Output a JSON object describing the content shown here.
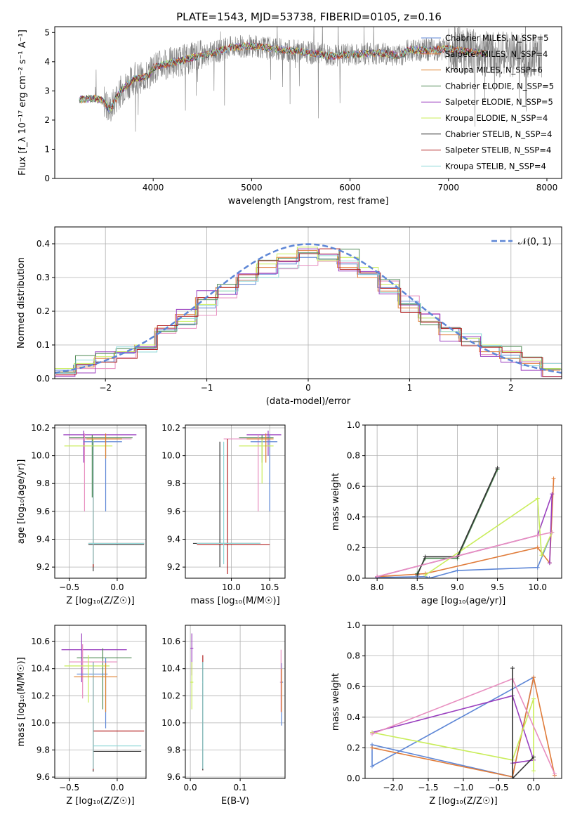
{
  "figure": {
    "title": "PLATE=1543, MJD=53738, FIBERID=0105, z=0.16"
  },
  "colors": {
    "chabrier_miles": "#5d86d6",
    "salpeter_miles": "#e07b39",
    "kroupa_miles": "#df7f2a",
    "chabrier_elodie": "#4f8a55",
    "salpeter_elodie": "#9a3fbf",
    "kroupa_elodie": "#c9ed5a",
    "chabrier_stelib": "#333333",
    "salpeter_stelib": "#b22222",
    "kroupa_stelib": "#8fd8d8",
    "pink": "#e88fc0",
    "data": "#808080",
    "grid": "#b0b0b0"
  },
  "chart_data": [
    {
      "id": "spectrum",
      "type": "line",
      "title": "PLATE=1543, MJD=53738, FIBERID=0105, z=0.16",
      "xlabel": "wavelength [Angstrom, rest frame]",
      "ylabel": "Flux [f_λ 10⁻¹⁷ erg cm⁻² s⁻¹ A⁻¹]",
      "xlim": [
        3000,
        8150
      ],
      "ylim": [
        0,
        5.2
      ],
      "xticks": [
        "4000",
        "5000",
        "6000",
        "7000",
        "8000"
      ],
      "yticks": [
        "0",
        "1",
        "2",
        "3",
        "4",
        "5"
      ],
      "grid": false,
      "legend_position": "upper-right",
      "legend": [
        "Chabrier MILES, N_SSP=5",
        "Salpeter MILES, N_SSP=4",
        "Kroupa MILES, N_SSP=6",
        "Chabrier ELODIE, N_SSP=5",
        "Salpeter ELODIE, N_SSP=5",
        "Kroupa ELODIE, N_SSP=4",
        "Chabrier STELIB, N_SSP=4",
        "Salpeter STELIB, N_SSP=4",
        "Kroupa STELIB, N_SSP=4"
      ],
      "model_continuum": {
        "x": [
          3250,
          3400,
          3500,
          3560,
          3650,
          3700,
          3800,
          3950,
          4000,
          4100,
          4300,
          4400,
          4600,
          4800,
          5000,
          5200,
          5500,
          5800,
          6000,
          6300,
          6500,
          6600,
          6800,
          7000,
          7200,
          7400
        ],
        "y": [
          2.7,
          2.75,
          2.65,
          2.35,
          2.9,
          3.1,
          3.4,
          3.5,
          3.8,
          3.9,
          4.05,
          4.15,
          4.3,
          4.5,
          4.55,
          4.45,
          4.35,
          4.2,
          4.25,
          4.3,
          4.2,
          4.4,
          4.4,
          4.45,
          4.35,
          4.25
        ]
      }
    },
    {
      "id": "residuals",
      "type": "histogram",
      "xlabel": "(data-model)/error",
      "ylabel": "Normed distribution",
      "xlim": [
        -2.5,
        2.5
      ],
      "ylim": [
        0,
        0.45
      ],
      "xticks": [
        "−2",
        "−1",
        "0",
        "1",
        "2"
      ],
      "yticks": [
        "0.0",
        "0.1",
        "0.2",
        "0.3",
        "0.4"
      ],
      "grid": true,
      "legend": [
        "𝒩(0, 1)"
      ],
      "legend_position": "upper-right",
      "bins": [
        -2.5,
        -2.3,
        -2.1,
        -1.9,
        -1.7,
        -1.5,
        -1.3,
        -1.1,
        -0.9,
        -0.7,
        -0.5,
        -0.3,
        -0.1,
        0.1,
        0.3,
        0.5,
        0.7,
        0.9,
        1.1,
        1.3,
        1.5,
        1.7,
        1.9,
        2.1,
        2.3,
        2.5
      ],
      "series": [
        {
          "values": [
            0.025,
            0.04,
            0.05,
            0.075,
            0.09,
            0.14,
            0.16,
            0.21,
            0.25,
            0.28,
            0.31,
            0.34,
            0.36,
            0.355,
            0.34,
            0.31,
            0.27,
            0.23,
            0.18,
            0.15,
            0.12,
            0.095,
            0.07,
            0.05,
            0.03
          ]
        },
        {
          "values": [
            0.02,
            0.035,
            0.06,
            0.08,
            0.1,
            0.15,
            0.19,
            0.24,
            0.27,
            0.3,
            0.33,
            0.36,
            0.38,
            0.37,
            0.33,
            0.3,
            0.26,
            0.21,
            0.17,
            0.13,
            0.11,
            0.08,
            0.06,
            0.045,
            0.025
          ]
        },
        {
          "values": [
            0.03,
            0.045,
            0.065,
            0.08,
            0.1,
            0.14,
            0.17,
            0.22,
            0.26,
            0.29,
            0.34,
            0.37,
            0.39,
            0.35,
            0.36,
            0.33,
            0.28,
            0.22,
            0.18,
            0.14,
            0.12,
            0.1,
            0.08,
            0.055,
            0.03
          ]
        }
      ],
      "normal_curve": {
        "mean": 0,
        "sigma": 1
      }
    },
    {
      "id": "age_vs_Z",
      "type": "errorbar",
      "xlabel": "Z [log₁₀(Z/Z☉)]",
      "ylabel": "age  [log₁₀(age/yr)]",
      "xlim": [
        -0.65,
        0.3
      ],
      "ylim": [
        9.12,
        10.22
      ],
      "xticks": [
        "−0.5",
        "0.0"
      ],
      "yticks": [
        "9.2",
        "9.4",
        "9.6",
        "9.8",
        "10.0",
        "10.2"
      ],
      "grid": true
    },
    {
      "id": "age_vs_mass",
      "type": "errorbar",
      "xlabel": "mass [log₁₀(M/M☉)]",
      "ylabel": "",
      "xlim": [
        9.4,
        10.7
      ],
      "ylim": [
        9.12,
        10.22
      ],
      "xticks": [
        "10.0",
        "10.5"
      ],
      "yticks": [
        "9.2",
        "9.4",
        "9.6",
        "9.8",
        "10.0",
        "10.2"
      ],
      "grid": true
    },
    {
      "id": "weight_vs_age",
      "type": "line",
      "xlabel": "age  [log₁₀(age/yr)]",
      "ylabel": "mass weight",
      "xlim": [
        7.85,
        10.3
      ],
      "ylim": [
        0,
        1
      ],
      "xticks": [
        "8.0",
        "8.5",
        "9.0",
        "9.5",
        "10.0"
      ],
      "yticks": [
        "0.0",
        "0.2",
        "0.4",
        "0.6",
        "0.8",
        "1.0"
      ],
      "grid": true
    },
    {
      "id": "mass_vs_Z",
      "type": "errorbar",
      "xlabel": "Z [log₁₀(Z/Z☉)]",
      "ylabel": "mass [log₁₀(M/M☉)]",
      "xlim": [
        -0.65,
        0.3
      ],
      "ylim": [
        9.59,
        10.72
      ],
      "xticks": [
        "−0.5",
        "0.0"
      ],
      "yticks": [
        "9.6",
        "9.8",
        "10.0",
        "10.2",
        "10.4",
        "10.6"
      ],
      "grid": true
    },
    {
      "id": "mass_vs_ebv",
      "type": "errorbar",
      "xlabel": "E(B-V)",
      "ylabel": "",
      "xlim": [
        -0.01,
        0.19
      ],
      "ylim": [
        9.59,
        10.72
      ],
      "xticks": [
        "0.0",
        "0.1"
      ],
      "yticks": [
        "9.6",
        "9.8",
        "10.0",
        "10.2",
        "10.4",
        "10.6"
      ],
      "grid": true
    },
    {
      "id": "weight_vs_Z",
      "type": "line",
      "xlabel": "Z [log₁₀(Z/Z☉)]",
      "ylabel": "mass weight",
      "xlim": [
        -2.4,
        0.4
      ],
      "ylim": [
        0,
        1
      ],
      "xticks": [
        "−2.0",
        "−1.5",
        "−1.0",
        "−0.5",
        "0.0"
      ],
      "yticks": [
        "0.0",
        "0.2",
        "0.4",
        "0.6",
        "0.8",
        "1.0"
      ],
      "grid": true
    }
  ]
}
